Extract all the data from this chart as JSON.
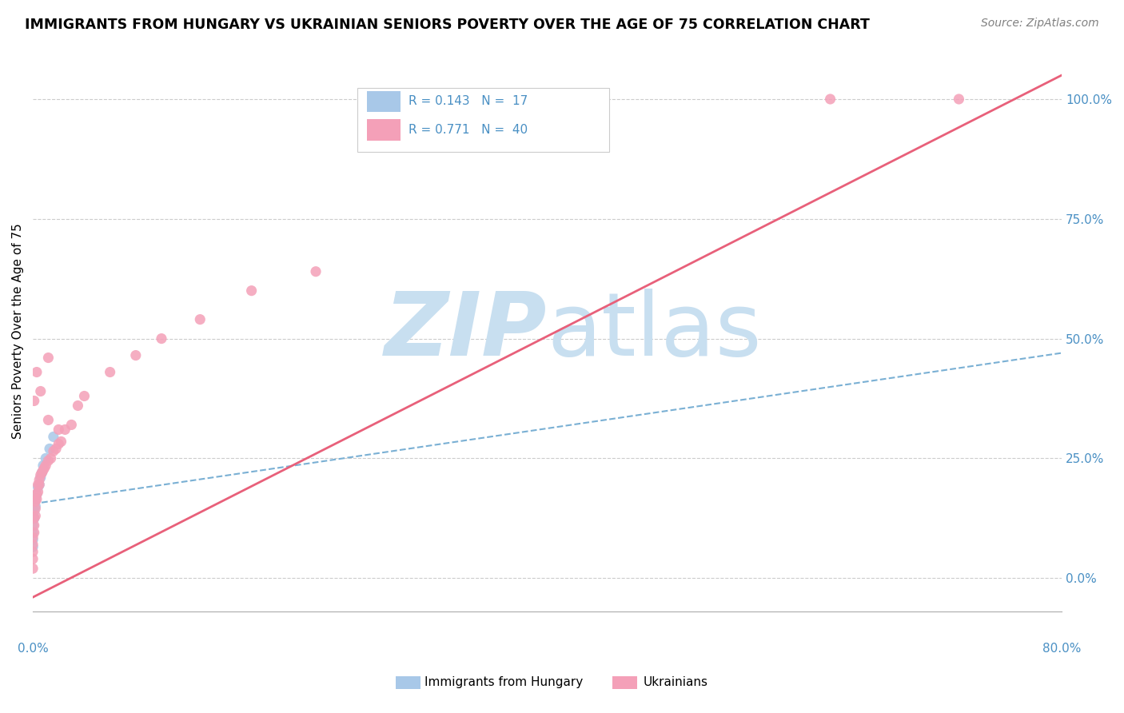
{
  "title": "IMMIGRANTS FROM HUNGARY VS UKRAINIAN SENIORS POVERTY OVER THE AGE OF 75 CORRELATION CHART",
  "source": "Source: ZipAtlas.com",
  "ylabel": "Seniors Poverty Over the Age of 75",
  "blue_color": "#a8c8e8",
  "pink_color": "#f4a0b8",
  "line_blue_color": "#7ab0d4",
  "line_pink_color": "#e8607a",
  "text_color": "#4a90c4",
  "watermark_zip_color": "#c8dff0",
  "watermark_atlas_color": "#c8dff0",
  "background_color": "#ffffff",
  "grid_color": "#cccccc",
  "xlim": [
    0.0,
    0.8
  ],
  "ylim": [
    -0.07,
    1.1
  ],
  "yticks": [
    0.0,
    0.25,
    0.5,
    0.75,
    1.0
  ],
  "ytick_labels": [
    "0.0%",
    "25.0%",
    "50.0%",
    "75.0%",
    "100.0%"
  ],
  "blue_x": [
    0.0,
    0.0,
    0.0,
    0.0,
    0.001,
    0.001,
    0.002,
    0.002,
    0.003,
    0.004,
    0.005,
    0.006,
    0.007,
    0.008,
    0.01,
    0.013,
    0.016
  ],
  "blue_y": [
    0.065,
    0.08,
    0.095,
    0.11,
    0.125,
    0.14,
    0.15,
    0.165,
    0.175,
    0.19,
    0.195,
    0.21,
    0.22,
    0.235,
    0.25,
    0.27,
    0.295
  ],
  "pink_x": [
    0.0,
    0.0,
    0.0,
    0.0,
    0.0,
    0.001,
    0.001,
    0.001,
    0.002,
    0.002,
    0.002,
    0.003,
    0.003,
    0.004,
    0.004,
    0.005,
    0.005,
    0.006,
    0.007,
    0.008,
    0.009,
    0.01,
    0.012,
    0.014,
    0.016,
    0.018,
    0.02,
    0.022,
    0.025,
    0.03,
    0.035,
    0.04,
    0.06,
    0.08,
    0.1,
    0.13,
    0.17,
    0.22,
    0.62,
    0.72
  ],
  "pink_y": [
    0.02,
    0.04,
    0.055,
    0.07,
    0.085,
    0.095,
    0.11,
    0.125,
    0.13,
    0.145,
    0.16,
    0.165,
    0.175,
    0.18,
    0.195,
    0.195,
    0.205,
    0.215,
    0.22,
    0.225,
    0.23,
    0.235,
    0.245,
    0.25,
    0.265,
    0.27,
    0.28,
    0.285,
    0.31,
    0.32,
    0.36,
    0.38,
    0.43,
    0.465,
    0.5,
    0.54,
    0.6,
    0.64,
    1.0,
    1.0
  ],
  "pink_outlier_x": [
    0.001,
    0.003,
    0.006,
    0.012,
    0.012,
    0.02
  ],
  "pink_outlier_y": [
    0.37,
    0.43,
    0.39,
    0.46,
    0.33,
    0.31
  ],
  "blue_line_x0": 0.0,
  "blue_line_y0": 0.155,
  "blue_line_x1": 0.8,
  "blue_line_y1": 0.47,
  "pink_line_x0": 0.0,
  "pink_line_y0": -0.04,
  "pink_line_x1": 0.8,
  "pink_line_y1": 1.05
}
